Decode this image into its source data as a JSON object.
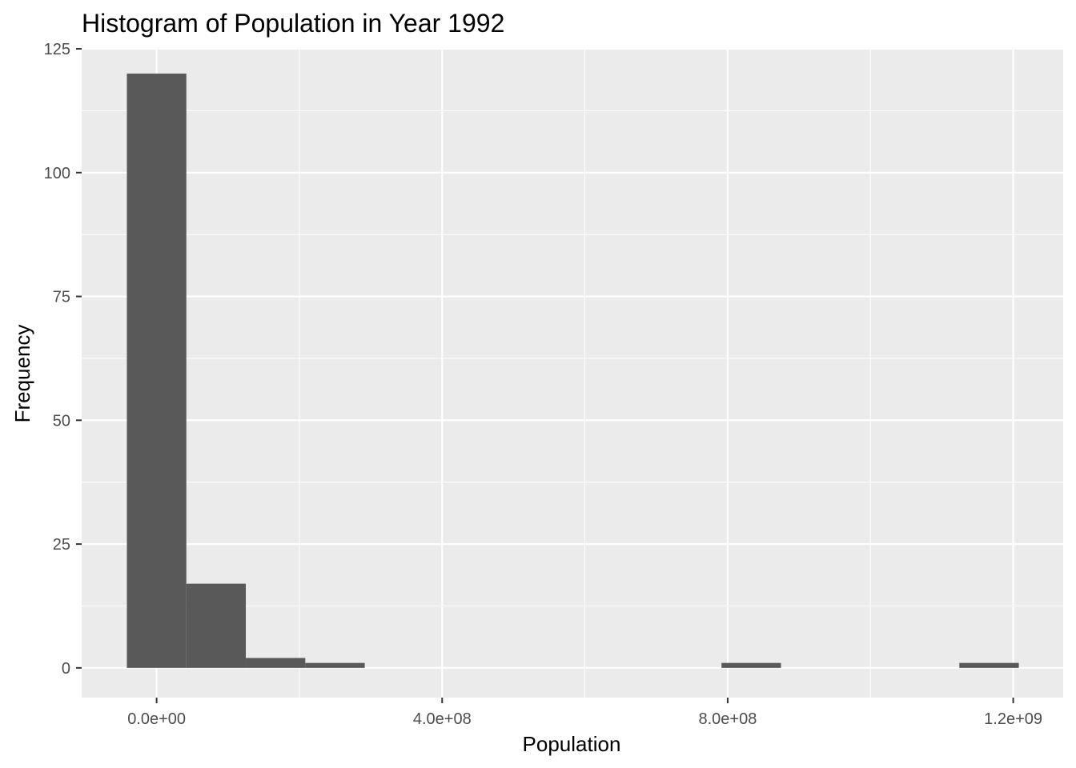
{
  "chart_data": {
    "type": "histogram",
    "title": "Histogram of Population in Year 1992",
    "xlabel": "Population",
    "ylabel": "Frequency",
    "bin_width": 83300000,
    "bins": [
      {
        "start": -41650000,
        "end": 41650000,
        "count": 120
      },
      {
        "start": 41650000,
        "end": 124950000,
        "count": 17
      },
      {
        "start": 124950000,
        "end": 208250000,
        "count": 2
      },
      {
        "start": 208250000,
        "end": 291550000,
        "count": 1
      },
      {
        "start": 791350000,
        "end": 874650000,
        "count": 1
      },
      {
        "start": 1124550000,
        "end": 1207850000,
        "count": 1
      }
    ],
    "xlim": [
      -105000000,
      1270000000
    ],
    "ylim": [
      -6,
      125
    ],
    "x_ticks": [
      {
        "value": 0,
        "label": "0.0e+00"
      },
      {
        "value": 400000000,
        "label": "4.0e+08"
      },
      {
        "value": 800000000,
        "label": "8.0e+08"
      },
      {
        "value": 1200000000,
        "label": "1.2e+09"
      }
    ],
    "y_ticks": [
      {
        "value": 0,
        "label": "0"
      },
      {
        "value": 25,
        "label": "25"
      },
      {
        "value": 50,
        "label": "50"
      },
      {
        "value": 75,
        "label": "75"
      },
      {
        "value": 100,
        "label": "100"
      },
      {
        "value": 125,
        "label": "125"
      }
    ],
    "grid": true,
    "colors": {
      "panel_background": "#ebebeb",
      "grid_line": "#ffffff",
      "bar_fill": "#595959",
      "tick_text": "#4d4d4d"
    }
  }
}
